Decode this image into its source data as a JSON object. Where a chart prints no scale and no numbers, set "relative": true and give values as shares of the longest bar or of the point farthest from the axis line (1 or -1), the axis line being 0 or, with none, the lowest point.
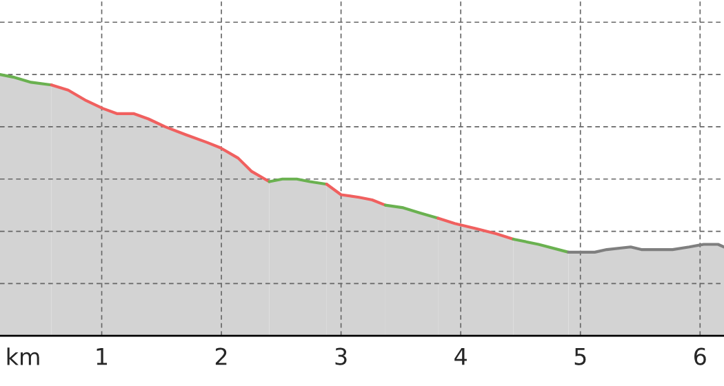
{
  "chart_data": {
    "type": "area",
    "relative": true,
    "xlabel": "km",
    "xlim": [
      0.15,
      6.2
    ],
    "xticks": [
      1,
      2,
      3,
      4,
      5,
      6
    ],
    "grid": true,
    "series": [
      {
        "color": "#6ab150",
        "x": [
          0.15,
          0.26,
          0.41,
          0.58
        ],
        "values": [
          1.0,
          0.99,
          0.97,
          0.96
        ]
      },
      {
        "color": "#f0605f",
        "x": [
          0.58,
          0.72,
          0.87,
          1.01,
          1.13,
          1.27,
          1.39,
          1.53,
          1.7,
          1.88,
          1.99,
          2.14,
          2.25,
          2.4
        ],
        "values": [
          0.96,
          0.94,
          0.9,
          0.87,
          0.85,
          0.85,
          0.83,
          0.8,
          0.77,
          0.74,
          0.72,
          0.68,
          0.63,
          0.59
        ]
      },
      {
        "color": "#6ab150",
        "x": [
          2.4,
          2.51,
          2.63,
          2.74,
          2.88
        ],
        "values": [
          0.59,
          0.6,
          0.6,
          0.59,
          0.58
        ]
      },
      {
        "color": "#f0605f",
        "x": [
          2.88,
          3.0,
          3.15,
          3.26,
          3.37
        ],
        "values": [
          0.58,
          0.54,
          0.53,
          0.52,
          0.5
        ]
      },
      {
        "color": "#6ab150",
        "x": [
          3.37,
          3.52,
          3.66,
          3.81
        ],
        "values": [
          0.5,
          0.49,
          0.47,
          0.45
        ]
      },
      {
        "color": "#f0605f",
        "x": [
          3.81,
          3.95,
          4.13,
          4.3,
          4.44
        ],
        "values": [
          0.45,
          0.43,
          0.41,
          0.39,
          0.37
        ]
      },
      {
        "color": "#6ab150",
        "x": [
          4.44,
          4.65,
          4.9
        ],
        "values": [
          0.37,
          0.35,
          0.32
        ]
      },
      {
        "color": "#7f7f7f",
        "x": [
          4.9,
          5.02,
          5.12,
          5.22,
          5.42,
          5.51,
          5.77,
          5.91,
          6.03,
          6.15,
          6.2
        ],
        "values": [
          0.32,
          0.32,
          0.32,
          0.33,
          0.34,
          0.33,
          0.33,
          0.34,
          0.35,
          0.35,
          0.34
        ]
      }
    ]
  }
}
